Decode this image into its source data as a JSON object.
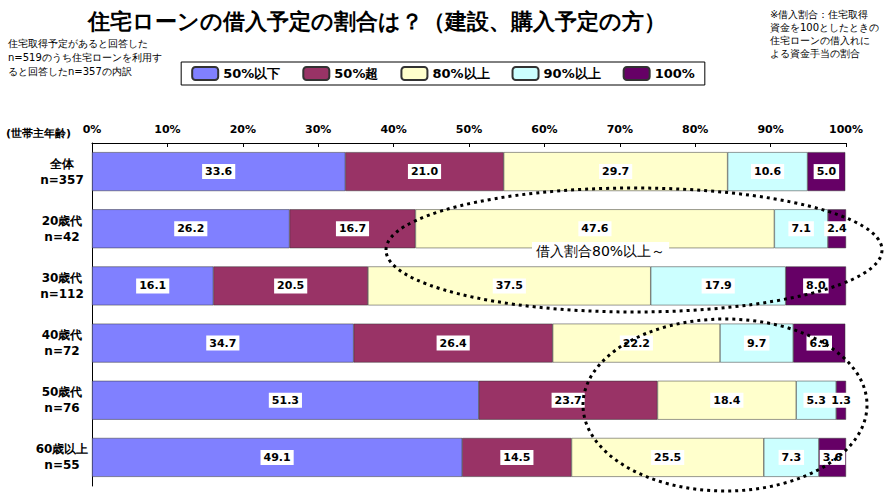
{
  "chart_data": {
    "type": "bar",
    "orientation": "horizontal",
    "stacked": true,
    "data_labels": true,
    "grid": false,
    "legend": "top",
    "title": "住宅ローンの借入予定の割合は？（建設、購入予定の方）",
    "note_left": [
      "住宅取得予定があると回答した",
      "n=519のうち住宅ローンを利用す",
      "ると回答したn=357の内訳"
    ],
    "note_right": [
      "※借入割合：住宅取得",
      "資金を100としたときの",
      "住宅ローンの借入れに",
      "よる資金手当の割合"
    ],
    "y_axis_title": "(世帯主年齢)",
    "annotation": "借入割合80%以上～",
    "categories": [
      "全体\nn=357",
      "20歳代\nn=42",
      "30歳代\nn=112",
      "40歳代\nn=72",
      "50歳代\nn=76",
      "60歳以上\nn=55"
    ],
    "xlim": [
      0,
      100
    ],
    "xticks": [
      {
        "value": 0,
        "label": "0%"
      },
      {
        "value": 10,
        "label": "10%"
      },
      {
        "value": 20,
        "label": "20%"
      },
      {
        "value": 30,
        "label": "30%"
      },
      {
        "value": 40,
        "label": "40%"
      },
      {
        "value": 50,
        "label": "50%"
      },
      {
        "value": 60,
        "label": "60%"
      },
      {
        "value": 70,
        "label": "70%"
      },
      {
        "value": 80,
        "label": "80%"
      },
      {
        "value": 90,
        "label": "90%"
      },
      {
        "value": 100,
        "label": "100%"
      }
    ],
    "series": [
      {
        "name": "50%以下",
        "color": "#8080ff",
        "values": [
          33.6,
          26.2,
          16.1,
          34.7,
          51.3,
          49.1
        ],
        "value_labels": [
          "33.6",
          "26.2",
          "16.1",
          "34.7",
          "51.3",
          "49.1"
        ]
      },
      {
        "name": "50%超",
        "color": "#993366",
        "values": [
          21.0,
          16.7,
          20.5,
          26.4,
          23.7,
          14.5
        ],
        "value_labels": [
          "21.0",
          "16.7",
          "20.5",
          "26.4",
          "23.7",
          "14.5"
        ]
      },
      {
        "name": "80%以上",
        "color": "#ffffcc",
        "values": [
          29.7,
          47.6,
          37.5,
          22.2,
          18.4,
          25.5
        ],
        "value_labels": [
          "29.7",
          "47.6",
          "37.5",
          "22.2",
          "18.4",
          "25.5"
        ]
      },
      {
        "name": "90%以上",
        "color": "#ccffff",
        "values": [
          10.6,
          7.1,
          17.9,
          9.7,
          5.3,
          7.3
        ],
        "value_labels": [
          "10.6",
          "7.1",
          "17.9",
          "9.7",
          "5.3",
          "7.3"
        ]
      },
      {
        "name": "100%",
        "color": "#660066",
        "values": [
          5.0,
          2.4,
          8.0,
          6.9,
          1.3,
          3.6
        ],
        "value_labels": [
          "5.0",
          "2.4",
          "8.0",
          "6.9",
          "1.3",
          "3.6"
        ]
      }
    ]
  }
}
